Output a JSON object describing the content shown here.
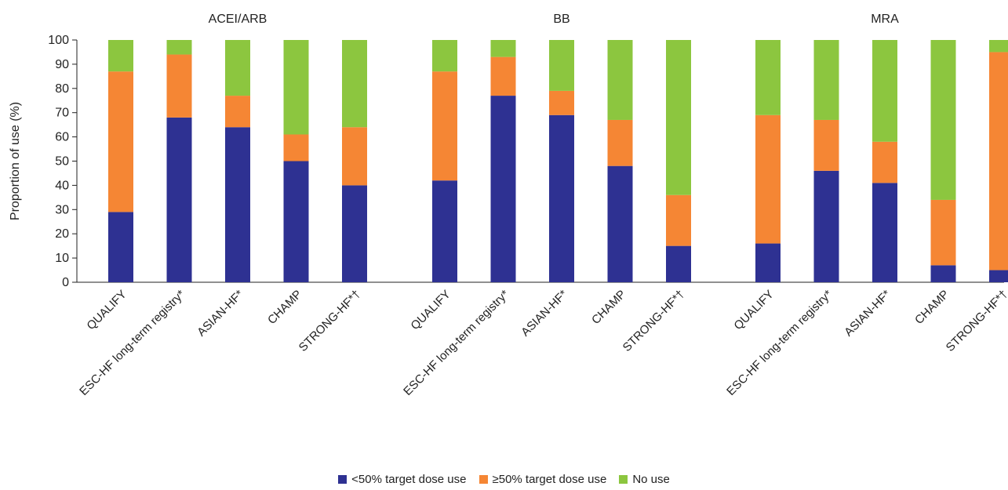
{
  "chart_data": {
    "type": "bar",
    "stacked": true,
    "ylabel": "Proportion of use (%)",
    "ylim": [
      0,
      100
    ],
    "yticks": [
      0,
      10,
      20,
      30,
      40,
      50,
      60,
      70,
      80,
      90,
      100
    ],
    "grid": false,
    "legend_position": "bottom-center",
    "groups": [
      {
        "title": "ACEI/ARB",
        "categories": [
          "QUALIFY",
          "ESC-HF long-term registry*",
          "ASIAN-HF*",
          "CHAMP",
          "STRONG-HF*†"
        ],
        "series": [
          {
            "name": "<50% target dose use",
            "values": [
              29,
              68,
              64,
              50,
              40
            ]
          },
          {
            "name": "≥50% target dose use",
            "values": [
              58,
              26,
              13,
              11,
              24
            ]
          },
          {
            "name": "No use",
            "values": [
              13,
              6,
              23,
              39,
              36
            ]
          }
        ]
      },
      {
        "title": "BB",
        "categories": [
          "QUALIFY",
          "ESC-HF long-term registry*",
          "ASIAN-HF*",
          "CHAMP",
          "STRONG-HF*†"
        ],
        "series": [
          {
            "name": "<50% target dose use",
            "values": [
              42,
              77,
              69,
              48,
              15
            ]
          },
          {
            "name": "≥50% target dose use",
            "values": [
              45,
              16,
              10,
              19,
              21
            ]
          },
          {
            "name": "No use",
            "values": [
              13,
              7,
              21,
              33,
              64
            ]
          }
        ]
      },
      {
        "title": "MRA",
        "categories": [
          "QUALIFY",
          "ESC-HF long-term registry*",
          "ASIAN-HF*",
          "CHAMP",
          "STRONG-HF*†"
        ],
        "series": [
          {
            "name": "<50% target dose use",
            "values": [
              16,
              46,
              41,
              7,
              5
            ]
          },
          {
            "name": "≥50% target dose use",
            "values": [
              53,
              21,
              17,
              27,
              90
            ]
          },
          {
            "name": "No use",
            "values": [
              31,
              33,
              42,
              66,
              5
            ]
          }
        ]
      }
    ],
    "colors": {
      "<50% target dose use": "#2e3192",
      "≥50% target dose use": "#f58634",
      "No use": "#8cc63f"
    }
  },
  "legend": {
    "items": [
      {
        "label": "<50% target dose use",
        "color": "#2e3192"
      },
      {
        "label": "≥50% target dose use",
        "color": "#f58634"
      },
      {
        "label": "No use",
        "color": "#8cc63f"
      }
    ]
  }
}
